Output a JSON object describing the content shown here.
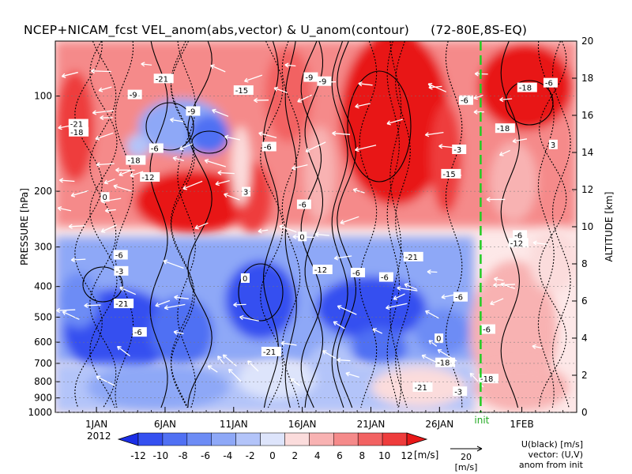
{
  "chart_data": {
    "type": "heatmap",
    "title": "NCEP+NICAM_fcst VEL_anom(abs,vector) & U_anom(contour)",
    "region": "(72-80E,8S-EQ)",
    "ylabel_left": "PRESSURE [hPa]",
    "ylabel_right": "ALTITUDE [km]",
    "x_ticks": [
      "1JAN",
      "6JAN",
      "11JAN",
      "16JAN",
      "21JAN",
      "26JAN",
      "1FEB"
    ],
    "year_label": "2012",
    "x_range": [
      "2011-12-29",
      "2012-02-05"
    ],
    "pressure_ticks": [
      100,
      200,
      300,
      400,
      500,
      600,
      700,
      800,
      900,
      1000
    ],
    "altitude_ticks": [
      0,
      2,
      4,
      6,
      8,
      10,
      12,
      14,
      16,
      18,
      20
    ],
    "init_label": "init",
    "init_date": "2012-01-29",
    "colorbar": {
      "levels": [
        -12,
        -10,
        -8,
        -6,
        -4,
        -2,
        0,
        2,
        4,
        6,
        8,
        10,
        12
      ],
      "tick_labels": [
        "-12",
        "-10",
        "-8",
        "-6",
        "-4",
        "-2",
        "0",
        "2",
        "4",
        "6",
        "8",
        "10",
        "12"
      ],
      "unit": "[m/s]",
      "colors": [
        "#1b2ee6",
        "#3550f0",
        "#5070f3",
        "#6d8cf5",
        "#8ea8f7",
        "#b3c4f9",
        "#dde4fb",
        "#fbdcdc",
        "#f8b2b2",
        "#f58a8a",
        "#f26262",
        "#ee3c3c",
        "#e81818"
      ]
    },
    "vector_key": {
      "value": "20",
      "unit": "[m/s]"
    },
    "legend_notes": [
      "U(black) [m/s]",
      "vector: (U,V)",
      "anom from init"
    ],
    "contour_labels": [
      "-3",
      "-6",
      "-9",
      "-12",
      "-15",
      "-18",
      "-21",
      "0",
      "3"
    ],
    "bands": [
      {
        "p_top": 50,
        "p_bot": 280,
        "sign": "positive",
        "magnitude_max": 12
      },
      {
        "p_top": 300,
        "p_bot": 700,
        "sign": "negative",
        "magnitude_max": -12
      },
      {
        "p_top": 700,
        "p_bot": 1000,
        "sign": "weak",
        "magnitude_max": 4
      }
    ]
  }
}
